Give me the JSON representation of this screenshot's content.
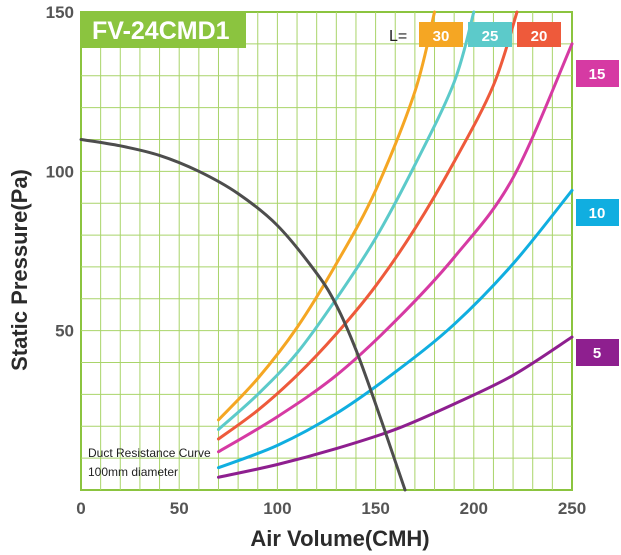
{
  "chart_data": {
    "type": "line",
    "title": "FV-24CMD1",
    "xlabel": "Air Volume(CMH)",
    "ylabel": "Static Pressure(Pa)",
    "xlim": [
      0,
      250
    ],
    "ylim": [
      0,
      150
    ],
    "xticks": [
      "0",
      "50",
      "100",
      "150",
      "200",
      "250"
    ],
    "yticks": [
      "50",
      "100",
      "150"
    ],
    "grid": true,
    "legend_prefix": "L=",
    "annotation": [
      "Duct Resistance Curve",
      "100mm diameter"
    ],
    "series": [
      {
        "name": "30",
        "color": "#f5a623",
        "label_position": "top",
        "x": [
          70,
          90,
          110,
          130,
          150,
          170,
          180
        ],
        "y": [
          22,
          35,
          51,
          71,
          94,
          125,
          150
        ]
      },
      {
        "name": "25",
        "color": "#5ccaca",
        "label_position": "top",
        "x": [
          70,
          90,
          110,
          130,
          150,
          170,
          190,
          200
        ],
        "y": [
          19,
          30,
          43,
          60,
          79,
          102,
          128,
          150
        ]
      },
      {
        "name": "20",
        "color": "#ee5a3b",
        "label_position": "top",
        "x": [
          70,
          90,
          110,
          130,
          150,
          170,
          190,
          210,
          222
        ],
        "y": [
          16,
          25,
          36,
          49,
          64,
          82,
          103,
          127,
          150
        ]
      },
      {
        "name": "15",
        "color": "#d63aa3",
        "label_position": "right",
        "x": [
          70,
          100,
          130,
          160,
          190,
          220,
          250
        ],
        "y": [
          12,
          23,
          36,
          53,
          73,
          98,
          140
        ]
      },
      {
        "name": "10",
        "color": "#10aee0",
        "label_position": "right",
        "x": [
          70,
          100,
          130,
          160,
          190,
          220,
          250
        ],
        "y": [
          7,
          14,
          24,
          37,
          52,
          71,
          94
        ]
      },
      {
        "name": "5",
        "color": "#8e1f8f",
        "label_position": "right",
        "x": [
          70,
          100,
          130,
          160,
          190,
          220,
          250
        ],
        "y": [
          4,
          8,
          13,
          19,
          27,
          36,
          48
        ]
      },
      {
        "name": "Duct Resistance Curve",
        "color": "#4d4d4d",
        "label_position": "none",
        "x": [
          0,
          20,
          40,
          60,
          80,
          100,
          120,
          130,
          140,
          150,
          160,
          165
        ],
        "y": [
          110,
          108,
          105,
          100,
          93,
          83,
          68,
          58,
          44,
          27,
          9,
          0
        ]
      }
    ]
  }
}
